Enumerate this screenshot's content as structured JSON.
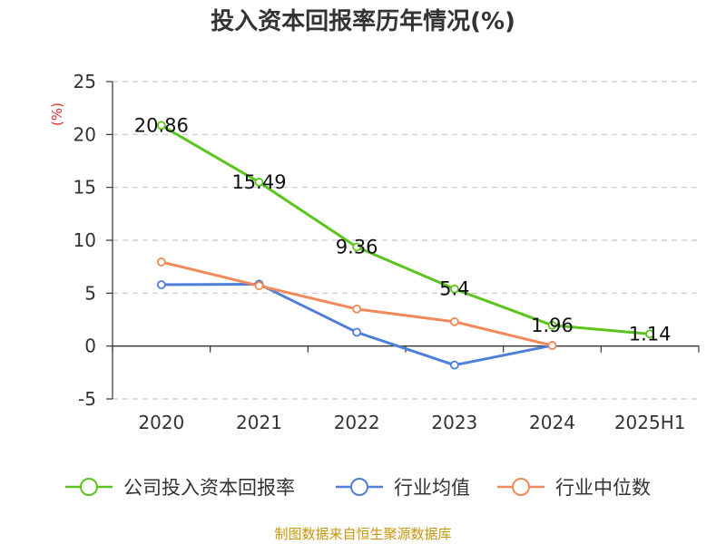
{
  "chart_data": {
    "type": "line",
    "title": "投入资本回报率历年情况(%)",
    "ylabel": "(%)",
    "xlabel": "",
    "categories": [
      "2020",
      "2021",
      "2022",
      "2023",
      "2024",
      "2025H1"
    ],
    "ylim": [
      -5,
      25
    ],
    "yticks": [
      25,
      20,
      15,
      10,
      5,
      0,
      -5
    ],
    "grid": true,
    "legend_position": "bottom",
    "series": [
      {
        "name": "公司投入资本回报率",
        "color": "#5cc41e",
        "values": [
          20.86,
          15.49,
          9.36,
          5.4,
          1.96,
          1.14
        ],
        "labels": [
          "20.86",
          "15.49",
          "9.36",
          "5.4",
          "1.96",
          "1.14"
        ]
      },
      {
        "name": "行业均值",
        "color": "#4f7fd9",
        "values": [
          5.8,
          5.85,
          1.3,
          -1.8,
          0.05,
          null
        ]
      },
      {
        "name": "行业中位数",
        "color": "#f08a5a",
        "values": [
          7.95,
          5.7,
          3.5,
          2.3,
          0.05,
          null
        ]
      }
    ]
  },
  "source": "制图数据来自恒生聚源数据库"
}
